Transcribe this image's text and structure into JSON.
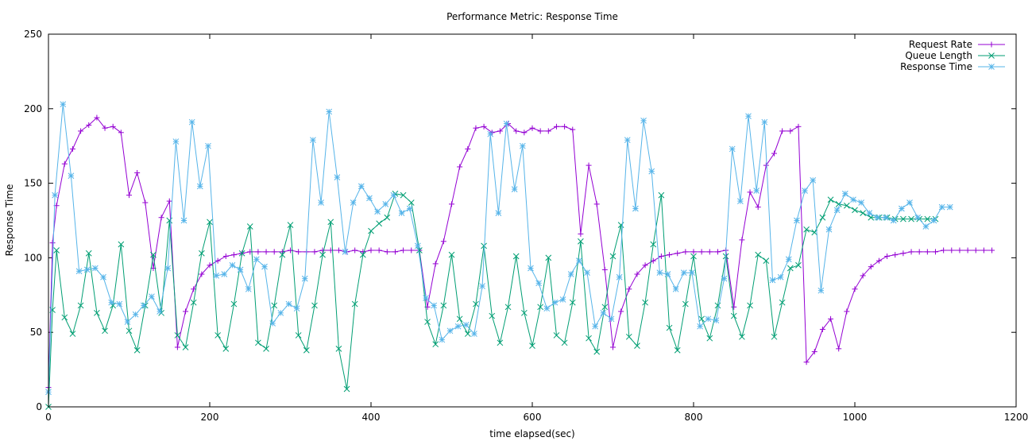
{
  "chart_data": {
    "type": "line",
    "title": "Performance Metric: Response Time",
    "xlabel": "time elapsed(sec)",
    "ylabel": "Response Time",
    "xlim": [
      0,
      1200
    ],
    "ylim": [
      0,
      250
    ],
    "xticks": [
      0,
      200,
      400,
      600,
      800,
      1000,
      1200
    ],
    "yticks": [
      0,
      50,
      100,
      150,
      200,
      250
    ],
    "grid": false,
    "legend_position": "top-right",
    "series": [
      {
        "name": "Request Rate",
        "color": "#9400d3",
        "marker": "plus",
        "x": [
          0,
          5,
          10,
          20,
          30,
          40,
          50,
          60,
          70,
          80,
          90,
          100,
          110,
          120,
          130,
          140,
          150,
          160,
          170,
          180,
          190,
          200,
          210,
          220,
          230,
          240,
          250,
          260,
          270,
          280,
          290,
          300,
          310,
          320,
          330,
          340,
          350,
          360,
          370,
          380,
          390,
          400,
          410,
          420,
          430,
          440,
          450,
          460,
          470,
          480,
          490,
          500,
          510,
          520,
          530,
          540,
          550,
          560,
          570,
          580,
          590,
          600,
          610,
          620,
          630,
          640,
          650,
          660,
          670,
          680,
          690,
          700,
          710,
          720,
          730,
          740,
          750,
          760,
          770,
          780,
          790,
          800,
          810,
          820,
          830,
          840,
          850,
          860,
          870,
          880,
          890,
          900,
          910,
          920,
          930,
          940,
          950,
          960,
          970,
          980,
          990,
          1000,
          1010,
          1020,
          1030,
          1040,
          1050,
          1060,
          1070,
          1080,
          1090,
          1100,
          1110,
          1120,
          1130,
          1140,
          1150,
          1160,
          1170
        ],
        "y": [
          13,
          110,
          135,
          163,
          173,
          185,
          189,
          194,
          187,
          188,
          184,
          142,
          157,
          137,
          93,
          127,
          138,
          40,
          64,
          79,
          89,
          95,
          98,
          101,
          102,
          103,
          104,
          104,
          104,
          104,
          104,
          105,
          104,
          104,
          104,
          105,
          105,
          105,
          104,
          105,
          104,
          105,
          105,
          104,
          104,
          105,
          105,
          105,
          67,
          96,
          111,
          136,
          161,
          173,
          187,
          188,
          184,
          185,
          190,
          185,
          184,
          187,
          185,
          185,
          188,
          188,
          186,
          116,
          162,
          136,
          92,
          40,
          64,
          79,
          89,
          95,
          98,
          101,
          102,
          103,
          104,
          104,
          104,
          104,
          104,
          105,
          67,
          112,
          144,
          134,
          162,
          170,
          185,
          185,
          188,
          30,
          37,
          52,
          59,
          39,
          64,
          79,
          88,
          94,
          98,
          101,
          102,
          103,
          104,
          104,
          104,
          104,
          105,
          105,
          105,
          105,
          105,
          105,
          105
        ]
      },
      {
        "name": "Queue Length",
        "color": "#009e73",
        "marker": "cross",
        "x": [
          0,
          5,
          10,
          20,
          30,
          40,
          50,
          60,
          70,
          80,
          90,
          100,
          110,
          120,
          130,
          140,
          150,
          160,
          170,
          180,
          190,
          200,
          210,
          220,
          230,
          240,
          250,
          260,
          270,
          280,
          290,
          300,
          310,
          320,
          330,
          340,
          350,
          360,
          370,
          380,
          390,
          400,
          410,
          420,
          430,
          440,
          450,
          460,
          470,
          480,
          490,
          500,
          510,
          520,
          530,
          540,
          550,
          560,
          570,
          580,
          590,
          600,
          610,
          620,
          630,
          640,
          650,
          660,
          670,
          680,
          690,
          700,
          710,
          720,
          730,
          740,
          750,
          760,
          770,
          780,
          790,
          800,
          810,
          820,
          830,
          840,
          850,
          860,
          870,
          880,
          890,
          900,
          910,
          920,
          930,
          940,
          950,
          960,
          970,
          980,
          990,
          1000,
          1010,
          1020,
          1030,
          1040,
          1050,
          1060,
          1070,
          1080,
          1090,
          1100
        ],
        "y": [
          0,
          65,
          105,
          60,
          49,
          68,
          103,
          63,
          51,
          68,
          109,
          51,
          38,
          68,
          102,
          63,
          125,
          48,
          40,
          70,
          103,
          124,
          48,
          39,
          69,
          103,
          121,
          43,
          39,
          68,
          102,
          122,
          48,
          38,
          68,
          102,
          124,
          39,
          12,
          69,
          102,
          118,
          123,
          127,
          143,
          142,
          137,
          105,
          57,
          42,
          68,
          102,
          59,
          49,
          69,
          108,
          61,
          43,
          67,
          101,
          63,
          41,
          67,
          100,
          48,
          43,
          70,
          111,
          46,
          37,
          67,
          101,
          122,
          47,
          41,
          70,
          109,
          142,
          53,
          38,
          69,
          101,
          59,
          46,
          68,
          101,
          61,
          47,
          68,
          102,
          98,
          47,
          70,
          93,
          95,
          119,
          117,
          127,
          139,
          136,
          135,
          132,
          130,
          127,
          127,
          127,
          126,
          126,
          126,
          126,
          126,
          126
        ]
      },
      {
        "name": "Response Time",
        "color": "#56b4e9",
        "marker": "star",
        "x": [
          0,
          8,
          18,
          28,
          38,
          48,
          58,
          68,
          78,
          88,
          98,
          108,
          118,
          128,
          138,
          148,
          158,
          168,
          178,
          188,
          198,
          208,
          218,
          228,
          238,
          248,
          258,
          268,
          278,
          288,
          298,
          308,
          318,
          328,
          338,
          348,
          358,
          368,
          378,
          388,
          398,
          408,
          418,
          428,
          438,
          448,
          458,
          468,
          478,
          488,
          498,
          508,
          518,
          528,
          538,
          548,
          558,
          568,
          578,
          588,
          598,
          608,
          618,
          628,
          638,
          648,
          658,
          668,
          678,
          688,
          698,
          708,
          718,
          728,
          738,
          748,
          758,
          768,
          778,
          788,
          798,
          808,
          818,
          828,
          838,
          848,
          858,
          868,
          878,
          888,
          898,
          908,
          918,
          928,
          938,
          948,
          958,
          968,
          978,
          988,
          998,
          1008,
          1018,
          1028,
          1038,
          1048,
          1058,
          1068,
          1078,
          1088,
          1098,
          1108,
          1118
        ],
        "y": [
          10,
          142,
          203,
          155,
          91,
          92,
          93,
          87,
          70,
          69,
          57,
          62,
          68,
          74,
          64,
          93,
          178,
          125,
          191,
          148,
          175,
          88,
          89,
          95,
          92,
          79,
          99,
          94,
          56,
          63,
          69,
          66,
          86,
          179,
          137,
          198,
          154,
          104,
          137,
          148,
          140,
          131,
          136,
          142,
          130,
          133,
          108,
          73,
          68,
          45,
          51,
          54,
          55,
          49,
          81,
          183,
          130,
          190,
          146,
          175,
          93,
          83,
          66,
          70,
          72,
          89,
          98,
          90,
          54,
          63,
          59,
          87,
          179,
          133,
          192,
          158,
          90,
          89,
          79,
          90,
          90,
          54,
          59,
          58,
          86,
          173,
          138,
          195,
          145,
          191,
          85,
          87,
          99,
          125,
          145,
          152,
          78,
          119,
          132,
          143,
          139,
          137,
          130,
          127,
          127,
          125,
          133,
          137,
          127,
          121,
          125,
          134,
          134
        ]
      }
    ]
  }
}
